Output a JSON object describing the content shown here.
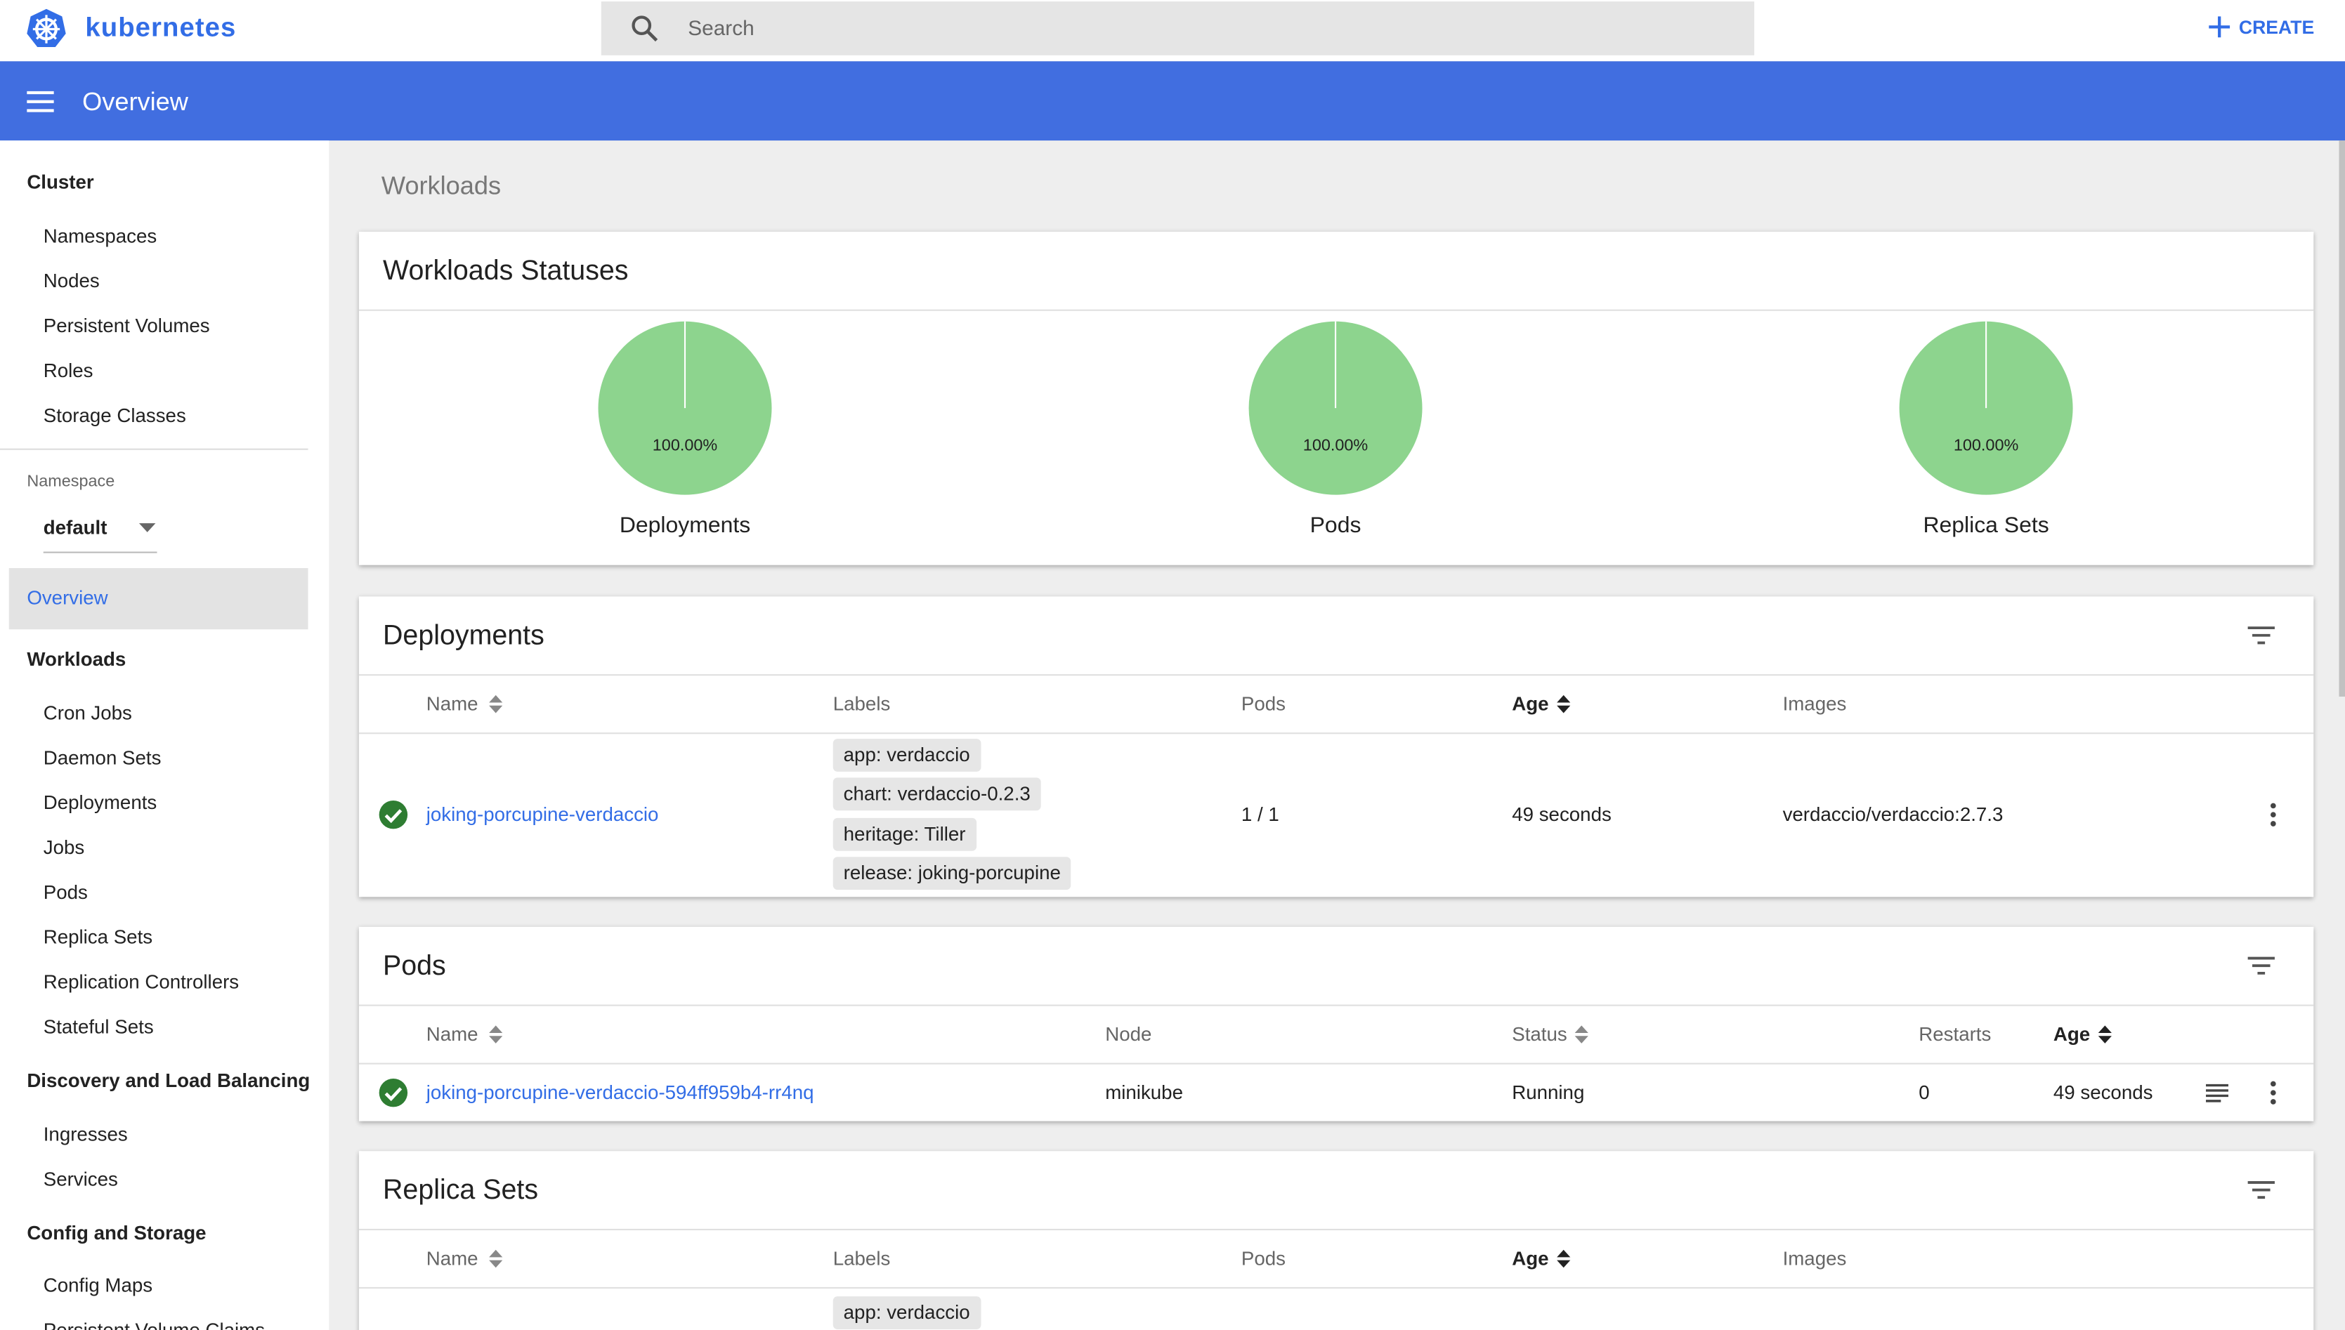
{
  "header": {
    "brand": "kubernetes",
    "search_placeholder": "Search",
    "create": "CREATE"
  },
  "toolbar": {
    "title": "Overview"
  },
  "sidebar": {
    "cluster": {
      "title": "Cluster",
      "items": [
        "Namespaces",
        "Nodes",
        "Persistent Volumes",
        "Roles",
        "Storage Classes"
      ]
    },
    "namespace": {
      "label": "Namespace",
      "value": "default"
    },
    "overview": "Overview",
    "workloads": {
      "title": "Workloads",
      "items": [
        "Cron Jobs",
        "Daemon Sets",
        "Deployments",
        "Jobs",
        "Pods",
        "Replica Sets",
        "Replication Controllers",
        "Stateful Sets"
      ]
    },
    "discovery": {
      "title": "Discovery and Load Balancing",
      "items": [
        "Ingresses",
        "Services"
      ]
    },
    "config": {
      "title": "Config and Storage",
      "items": [
        "Config Maps",
        "Persistent Volume Claims"
      ]
    }
  },
  "page": {
    "breadcrumb": "Workloads"
  },
  "statuses": {
    "title": "Workloads Statuses",
    "charts": [
      {
        "label": "Deployments",
        "percent": "100.00%"
      },
      {
        "label": "Pods",
        "percent": "100.00%"
      },
      {
        "label": "Replica Sets",
        "percent": "100.00%"
      }
    ]
  },
  "deployments": {
    "title": "Deployments",
    "columns": [
      "Name",
      "Labels",
      "Pods",
      "Age",
      "Images"
    ],
    "rows": [
      {
        "name": "joking-porcupine-verdaccio",
        "labels": [
          "app: verdaccio",
          "chart: verdaccio-0.2.3",
          "heritage: Tiller",
          "release: joking-porcupine"
        ],
        "pods": "1 / 1",
        "age": "49 seconds",
        "image": "verdaccio/verdaccio:2.7.3"
      }
    ]
  },
  "pods": {
    "title": "Pods",
    "columns": [
      "Name",
      "Node",
      "Status",
      "Restarts",
      "Age"
    ],
    "rows": [
      {
        "name": "joking-porcupine-verdaccio-594ff959b4-rr4nq",
        "node": "minikube",
        "status": "Running",
        "restarts": "0",
        "age": "49 seconds"
      }
    ]
  },
  "replica_sets": {
    "title": "Replica Sets",
    "columns": [
      "Name",
      "Labels",
      "Pods",
      "Age",
      "Images"
    ],
    "rows": [
      {
        "labels": [
          "app: verdaccio"
        ]
      }
    ]
  }
}
